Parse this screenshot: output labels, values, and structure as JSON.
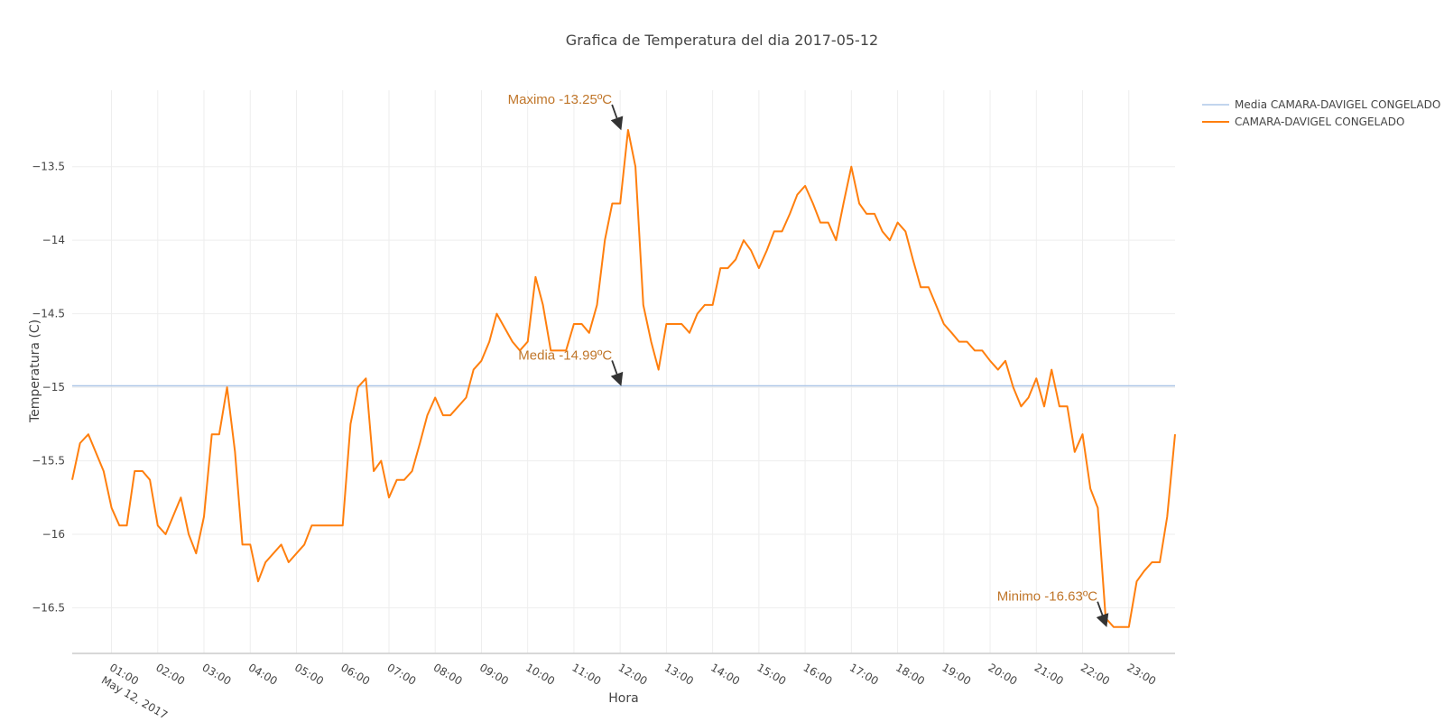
{
  "chart_data": {
    "type": "line",
    "title": "Grafica de Temperatura del dia 2017-05-12",
    "xlabel": "Hora",
    "ylabel": "Temperatura (C)",
    "x_range_hours": [
      0.15,
      24.0
    ],
    "ylim": [
      -16.81,
      -12.98
    ],
    "y_ticks": [
      -13.5,
      -14,
      -14.5,
      -15,
      -15.5,
      -16,
      -16.5
    ],
    "y_tick_labels": [
      "−13.5",
      "−14",
      "−14.5",
      "−15",
      "−15.5",
      "−16",
      "−16.5"
    ],
    "x_tick_hours": [
      1,
      2,
      3,
      4,
      5,
      6,
      7,
      8,
      9,
      10,
      11,
      12,
      13,
      14,
      15,
      16,
      17,
      18,
      19,
      20,
      21,
      22,
      23
    ],
    "x_tick_labels": [
      "01:00",
      "02:00",
      "03:00",
      "04:00",
      "05:00",
      "06:00",
      "07:00",
      "08:00",
      "09:00",
      "10:00",
      "11:00",
      "12:00",
      "13:00",
      "14:00",
      "15:00",
      "16:00",
      "17:00",
      "18:00",
      "19:00",
      "20:00",
      "21:00",
      "22:00",
      "23:00"
    ],
    "x_date_label": "May 12, 2017",
    "grid": true,
    "legend_position": "top-right",
    "series": [
      {
        "name": "Media CAMARA-DAVIGEL CONGELADO",
        "color": "#aec7e8",
        "x": [
          0.15,
          24.0
        ],
        "y": [
          -14.99,
          -14.99
        ]
      },
      {
        "name": "CAMARA-DAVIGEL CONGELADO",
        "color": "#ff7f0e",
        "x": [
          0.15,
          0.32,
          0.5,
          0.83,
          1.0,
          1.17,
          1.33,
          1.5,
          1.67,
          1.83,
          2.0,
          2.17,
          2.5,
          2.67,
          2.83,
          3.0,
          3.17,
          3.33,
          3.5,
          3.67,
          3.83,
          4.0,
          4.17,
          4.33,
          4.67,
          4.83,
          5.0,
          5.17,
          5.33,
          5.5,
          5.67,
          6.0,
          6.17,
          6.33,
          6.5,
          6.67,
          6.83,
          7.0,
          7.17,
          7.33,
          7.5,
          7.67,
          7.83,
          8.0,
          8.17,
          8.33,
          8.5,
          8.67,
          8.83,
          9.0,
          9.17,
          9.33,
          9.67,
          9.83,
          10.0,
          10.17,
          10.33,
          10.5,
          10.67,
          10.83,
          11.0,
          11.17,
          11.33,
          11.5,
          11.67,
          11.83,
          12.0,
          12.17,
          12.33,
          12.5,
          12.67,
          12.83,
          13.0,
          13.17,
          13.33,
          13.5,
          13.67,
          13.83,
          14.0,
          14.17,
          14.33,
          14.5,
          14.67,
          14.83,
          15.0,
          15.17,
          15.33,
          15.5,
          15.67,
          15.83,
          16.0,
          16.17,
          16.33,
          16.5,
          16.67,
          16.83,
          17.0,
          17.17,
          17.33,
          17.5,
          17.67,
          17.83,
          18.0,
          18.17,
          18.33,
          18.5,
          18.67,
          18.83,
          19.0,
          19.17,
          19.33,
          19.5,
          19.67,
          19.83,
          20.0,
          20.17,
          20.33,
          20.5,
          20.67,
          20.83,
          21.0,
          21.17,
          21.33,
          21.5,
          21.67,
          21.83,
          22.0,
          22.17,
          22.33,
          22.5,
          22.67,
          22.83,
          23.0,
          23.17,
          23.33,
          23.5,
          23.67,
          23.83,
          24.0
        ],
        "y": [
          -15.63,
          -15.38,
          -15.32,
          -15.57,
          -15.82,
          -15.94,
          -15.94,
          -15.57,
          -15.57,
          -15.63,
          -15.94,
          -16.0,
          -15.75,
          -16.0,
          -16.13,
          -15.88,
          -15.32,
          -15.32,
          -15.0,
          -15.44,
          -16.07,
          -16.07,
          -16.32,
          -16.19,
          -16.07,
          -16.19,
          -16.13,
          -16.07,
          -15.94,
          -15.94,
          -15.94,
          -15.94,
          -15.25,
          -15.0,
          -14.94,
          -15.57,
          -15.5,
          -15.75,
          -15.63,
          -15.63,
          -15.57,
          -15.38,
          -15.19,
          -15.07,
          -15.19,
          -15.19,
          -15.13,
          -15.07,
          -14.88,
          -14.82,
          -14.69,
          -14.5,
          -14.69,
          -14.75,
          -14.69,
          -14.25,
          -14.44,
          -14.75,
          -14.75,
          -14.75,
          -14.57,
          -14.57,
          -14.63,
          -14.44,
          -14.0,
          -13.75,
          -13.75,
          -13.25,
          -13.5,
          -14.44,
          -14.69,
          -14.88,
          -14.57,
          -14.57,
          -14.57,
          -14.63,
          -14.5,
          -14.44,
          -14.44,
          -14.19,
          -14.19,
          -14.13,
          -14.0,
          -14.07,
          -14.19,
          -14.07,
          -13.94,
          -13.94,
          -13.82,
          -13.69,
          -13.63,
          -13.75,
          -13.88,
          -13.88,
          -14.0,
          -13.75,
          -13.5,
          -13.75,
          -13.82,
          -13.82,
          -13.94,
          -14.0,
          -13.88,
          -13.94,
          -14.13,
          -14.32,
          -14.32,
          -14.44,
          -14.57,
          -14.63,
          -14.69,
          -14.69,
          -14.75,
          -14.75,
          -14.82,
          -14.88,
          -14.82,
          -15.0,
          -15.13,
          -15.07,
          -14.94,
          -15.13,
          -14.88,
          -15.13,
          -15.13,
          -15.44,
          -15.32,
          -15.69,
          -15.82,
          -16.57,
          -16.63,
          -16.63,
          -16.63,
          -16.32,
          -16.25,
          -16.19,
          -16.19,
          -15.88,
          -15.32
        ]
      }
    ],
    "annotations": [
      {
        "name": "max",
        "text": "Maximo -13.25ºC",
        "x": 12.0,
        "y": -13.25
      },
      {
        "name": "mean",
        "text": "Media -14.99ºC",
        "x": 12.0,
        "y": -14.99
      },
      {
        "name": "min",
        "text": "Minimo -16.63ºC",
        "x": 22.5,
        "y": -16.63
      }
    ]
  }
}
